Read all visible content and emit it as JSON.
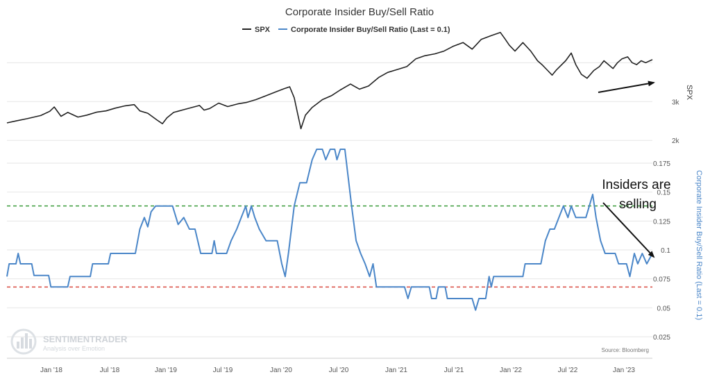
{
  "chart_data": {
    "type": "line",
    "title": "Corporate Insider Buy/Sell Ratio",
    "legend": {
      "placement": "top-center",
      "items": [
        {
          "name": "SPX",
          "color": "#222222"
        },
        {
          "name": "Corporate Insider Buy/Sell Ratio (Last = 0.1)",
          "color": "#4a86c8"
        }
      ]
    },
    "x_ticks": [
      "Jan '18",
      "Jul '18",
      "Jan '19",
      "Jul '19",
      "Jan '20",
      "Jul '20",
      "Jan '21",
      "Jul '21",
      "Jan '22",
      "Jul '22",
      "Jan '23"
    ],
    "x_range": [
      2017.62,
      2023.35
    ],
    "spx_axis": {
      "title": "SPX",
      "ticks": [
        "3k",
        "2k"
      ],
      "tick_values": [
        3000,
        2000
      ],
      "range": [
        1950,
        4900
      ]
    },
    "ratio_axis": {
      "title": "Corporate Insider Buy/Sell Ratio (Last = 0.1)",
      "ticks": [
        "0.175",
        "0.15",
        "0.125",
        "0.1",
        "0.075",
        "0.05",
        "0.025"
      ],
      "tick_values": [
        0.175,
        0.15,
        0.125,
        0.1,
        0.075,
        0.05,
        0.025
      ],
      "range": [
        0.01,
        0.19
      ]
    },
    "reference_lines": [
      {
        "value": 0.138,
        "color": "#3a9a3a",
        "style": "dashed"
      },
      {
        "value": 0.068,
        "color": "#d9473f",
        "style": "dashed"
      }
    ],
    "grid": true,
    "series": [
      {
        "name": "SPX",
        "axis": "spx",
        "color": "#222222",
        "points": [
          [
            2017.62,
            2450
          ],
          [
            2017.7,
            2500
          ],
          [
            2017.8,
            2560
          ],
          [
            2017.92,
            2640
          ],
          [
            2018.0,
            2750
          ],
          [
            2018.04,
            2860
          ],
          [
            2018.1,
            2620
          ],
          [
            2018.16,
            2720
          ],
          [
            2018.25,
            2600
          ],
          [
            2018.33,
            2650
          ],
          [
            2018.42,
            2730
          ],
          [
            2018.5,
            2760
          ],
          [
            2018.58,
            2830
          ],
          [
            2018.67,
            2890
          ],
          [
            2018.75,
            2920
          ],
          [
            2018.8,
            2760
          ],
          [
            2018.87,
            2700
          ],
          [
            2018.95,
            2530
          ],
          [
            2019.0,
            2430
          ],
          [
            2019.04,
            2580
          ],
          [
            2019.1,
            2720
          ],
          [
            2019.2,
            2800
          ],
          [
            2019.33,
            2900
          ],
          [
            2019.37,
            2780
          ],
          [
            2019.42,
            2820
          ],
          [
            2019.5,
            2960
          ],
          [
            2019.58,
            2870
          ],
          [
            2019.67,
            2940
          ],
          [
            2019.75,
            2980
          ],
          [
            2019.83,
            3050
          ],
          [
            2019.92,
            3150
          ],
          [
            2020.0,
            3240
          ],
          [
            2020.08,
            3330
          ],
          [
            2020.13,
            3380
          ],
          [
            2020.17,
            3100
          ],
          [
            2020.2,
            2700
          ],
          [
            2020.23,
            2300
          ],
          [
            2020.27,
            2650
          ],
          [
            2020.33,
            2850
          ],
          [
            2020.42,
            3050
          ],
          [
            2020.5,
            3150
          ],
          [
            2020.58,
            3300
          ],
          [
            2020.67,
            3450
          ],
          [
            2020.75,
            3320
          ],
          [
            2020.83,
            3400
          ],
          [
            2020.92,
            3620
          ],
          [
            2021.0,
            3750
          ],
          [
            2021.08,
            3820
          ],
          [
            2021.17,
            3900
          ],
          [
            2021.25,
            4100
          ],
          [
            2021.33,
            4180
          ],
          [
            2021.42,
            4230
          ],
          [
            2021.5,
            4300
          ],
          [
            2021.58,
            4420
          ],
          [
            2021.67,
            4520
          ],
          [
            2021.75,
            4350
          ],
          [
            2021.83,
            4600
          ],
          [
            2021.92,
            4700
          ],
          [
            2022.0,
            4780
          ],
          [
            2022.04,
            4620
          ],
          [
            2022.08,
            4450
          ],
          [
            2022.13,
            4300
          ],
          [
            2022.2,
            4520
          ],
          [
            2022.27,
            4300
          ],
          [
            2022.33,
            4050
          ],
          [
            2022.37,
            3950
          ],
          [
            2022.42,
            3800
          ],
          [
            2022.46,
            3680
          ],
          [
            2022.5,
            3820
          ],
          [
            2022.58,
            4050
          ],
          [
            2022.63,
            4250
          ],
          [
            2022.67,
            3950
          ],
          [
            2022.72,
            3700
          ],
          [
            2022.77,
            3600
          ],
          [
            2022.83,
            3800
          ],
          [
            2022.88,
            3900
          ],
          [
            2022.92,
            4050
          ],
          [
            2023.0,
            3850
          ],
          [
            2023.04,
            4000
          ],
          [
            2023.08,
            4100
          ],
          [
            2023.13,
            4150
          ],
          [
            2023.17,
            4000
          ],
          [
            2023.21,
            3950
          ],
          [
            2023.25,
            4050
          ],
          [
            2023.29,
            4000
          ],
          [
            2023.35,
            4080
          ]
        ]
      },
      {
        "name": "Corporate Insider Buy/Sell Ratio (Last = 0.1)",
        "axis": "ratio",
        "color": "#4a86c8",
        "points": [
          [
            2017.62,
            0.077
          ],
          [
            2017.64,
            0.088
          ],
          [
            2017.7,
            0.088
          ],
          [
            2017.72,
            0.097
          ],
          [
            2017.74,
            0.088
          ],
          [
            2017.84,
            0.088
          ],
          [
            2017.86,
            0.078
          ],
          [
            2017.99,
            0.078
          ],
          [
            2018.01,
            0.068
          ],
          [
            2018.16,
            0.068
          ],
          [
            2018.18,
            0.077
          ],
          [
            2018.36,
            0.077
          ],
          [
            2018.38,
            0.088
          ],
          [
            2018.52,
            0.088
          ],
          [
            2018.54,
            0.097
          ],
          [
            2018.76,
            0.097
          ],
          [
            2018.8,
            0.118
          ],
          [
            2018.84,
            0.128
          ],
          [
            2018.87,
            0.12
          ],
          [
            2018.9,
            0.133
          ],
          [
            2018.94,
            0.138
          ],
          [
            2019.09,
            0.138
          ],
          [
            2019.14,
            0.122
          ],
          [
            2019.19,
            0.128
          ],
          [
            2019.24,
            0.118
          ],
          [
            2019.29,
            0.118
          ],
          [
            2019.34,
            0.097
          ],
          [
            2019.44,
            0.097
          ],
          [
            2019.46,
            0.108
          ],
          [
            2019.48,
            0.097
          ],
          [
            2019.57,
            0.097
          ],
          [
            2019.61,
            0.108
          ],
          [
            2019.66,
            0.118
          ],
          [
            2019.7,
            0.128
          ],
          [
            2019.74,
            0.138
          ],
          [
            2019.76,
            0.128
          ],
          [
            2019.79,
            0.138
          ],
          [
            2019.82,
            0.128
          ],
          [
            2019.86,
            0.118
          ],
          [
            2019.92,
            0.108
          ],
          [
            2020.02,
            0.108
          ],
          [
            2020.06,
            0.088
          ],
          [
            2020.09,
            0.077
          ],
          [
            2020.12,
            0.098
          ],
          [
            2020.17,
            0.138
          ],
          [
            2020.22,
            0.158
          ],
          [
            2020.28,
            0.158
          ],
          [
            2020.33,
            0.178
          ],
          [
            2020.37,
            0.187
          ],
          [
            2020.42,
            0.187
          ],
          [
            2020.45,
            0.178
          ],
          [
            2020.49,
            0.187
          ],
          [
            2020.53,
            0.187
          ],
          [
            2020.55,
            0.178
          ],
          [
            2020.58,
            0.187
          ],
          [
            2020.62,
            0.187
          ],
          [
            2020.68,
            0.138
          ],
          [
            2020.72,
            0.108
          ],
          [
            2020.76,
            0.097
          ],
          [
            2020.8,
            0.088
          ],
          [
            2020.84,
            0.077
          ],
          [
            2020.87,
            0.088
          ],
          [
            2020.9,
            0.068
          ],
          [
            2021.15,
            0.068
          ],
          [
            2021.18,
            0.058
          ],
          [
            2021.21,
            0.068
          ],
          [
            2021.37,
            0.068
          ],
          [
            2021.39,
            0.058
          ],
          [
            2021.43,
            0.058
          ],
          [
            2021.45,
            0.068
          ],
          [
            2021.51,
            0.068
          ],
          [
            2021.53,
            0.058
          ],
          [
            2021.75,
            0.058
          ],
          [
            2021.78,
            0.048
          ],
          [
            2021.81,
            0.058
          ],
          [
            2021.87,
            0.058
          ],
          [
            2021.9,
            0.077
          ],
          [
            2021.92,
            0.068
          ],
          [
            2021.94,
            0.077
          ],
          [
            2022.2,
            0.077
          ],
          [
            2022.22,
            0.088
          ],
          [
            2022.36,
            0.088
          ],
          [
            2022.4,
            0.108
          ],
          [
            2022.44,
            0.118
          ],
          [
            2022.48,
            0.118
          ],
          [
            2022.52,
            0.128
          ],
          [
            2022.56,
            0.138
          ],
          [
            2022.6,
            0.128
          ],
          [
            2022.63,
            0.138
          ],
          [
            2022.67,
            0.128
          ],
          [
            2022.76,
            0.128
          ],
          [
            2022.79,
            0.138
          ],
          [
            2022.82,
            0.148
          ],
          [
            2022.85,
            0.128
          ],
          [
            2022.89,
            0.108
          ],
          [
            2022.93,
            0.097
          ],
          [
            2023.02,
            0.097
          ],
          [
            2023.05,
            0.088
          ],
          [
            2023.12,
            0.088
          ],
          [
            2023.15,
            0.077
          ],
          [
            2023.19,
            0.097
          ],
          [
            2023.22,
            0.088
          ],
          [
            2023.26,
            0.097
          ],
          [
            2023.3,
            0.088
          ],
          [
            2023.35,
            0.097
          ]
        ]
      }
    ],
    "annotations": [
      {
        "text_lines": [
          "Insiders are",
          "selling"
        ]
      }
    ],
    "source": "Source: Bloomberg",
    "watermark": {
      "brand": "SENTIMENTRADER",
      "tagline": "Analysis over Emotion",
      "icon": "bar-chart-logo-icon"
    }
  }
}
